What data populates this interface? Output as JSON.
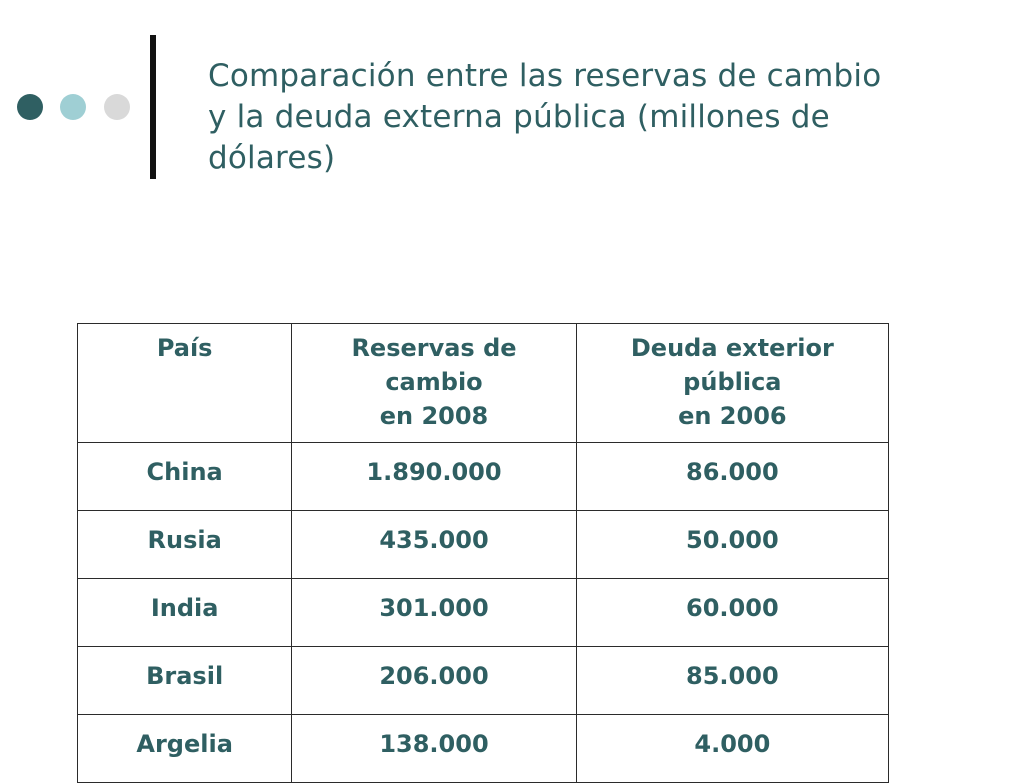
{
  "slide": {
    "title_lines": [
      "Comparación entre las reservas de cambio",
      "y la deuda externa pública (millones de",
      "dólares)"
    ]
  },
  "table": {
    "headers": [
      [
        "País"
      ],
      [
        "Reservas de",
        "cambio",
        "en 2008"
      ],
      [
        "Deuda exterior",
        "pública",
        "en 2006"
      ]
    ],
    "rows": [
      [
        "China",
        "1.890.000",
        "86.000"
      ],
      [
        "Rusia",
        "435.000",
        "50.000"
      ],
      [
        "India",
        "301.000",
        "60.000"
      ],
      [
        "Brasil",
        "206.000",
        "85.000"
      ],
      [
        "Argelia",
        "138.000",
        "4.000"
      ]
    ]
  },
  "colors": {
    "text": "#2f5f62",
    "dot_dark": "#2f5f62",
    "dot_light": "#9fcfd4",
    "dot_gray": "#d9d9d9",
    "bar": "#111111",
    "border": "#2b2b2b"
  }
}
